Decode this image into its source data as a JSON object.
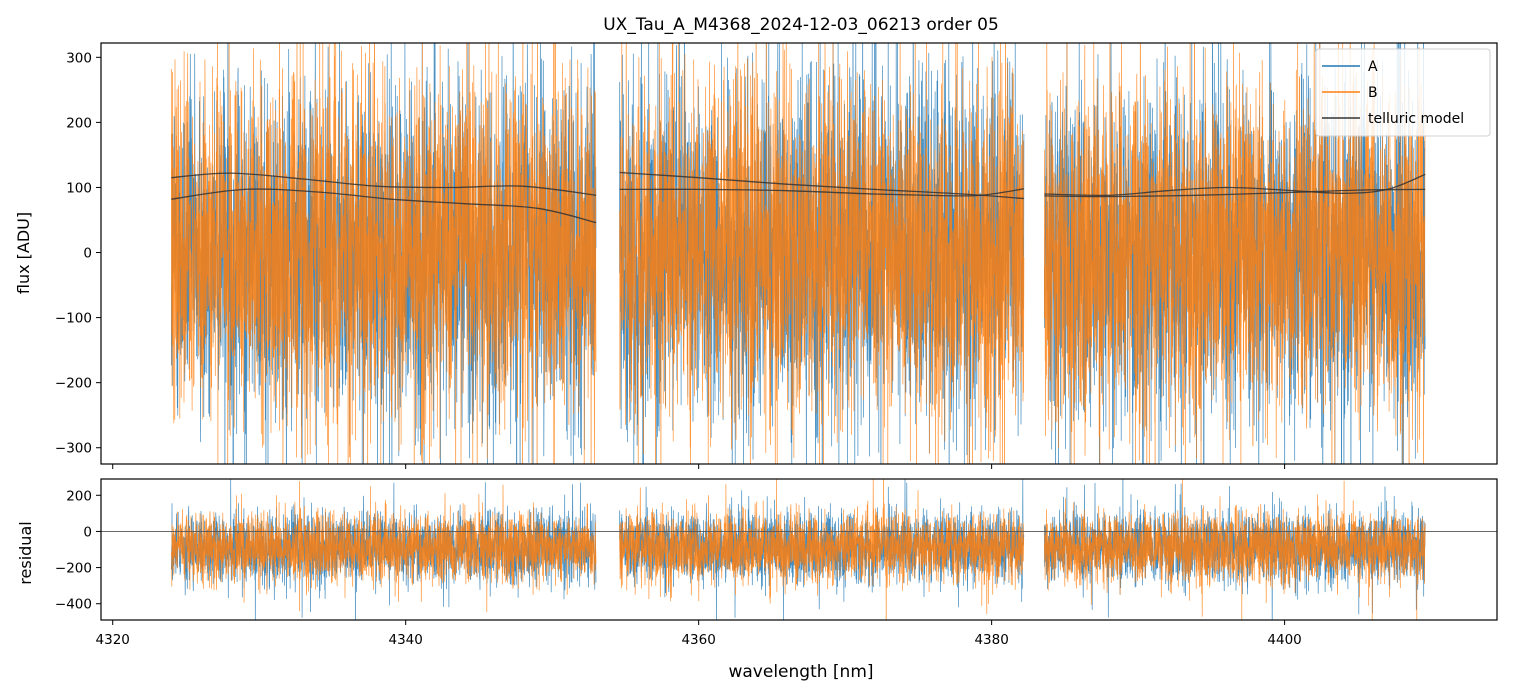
{
  "chart_data": [
    {
      "type": "line",
      "title": "UX_Tau_A_M4368_2024-12-03_06213  order 05",
      "xlabel": "",
      "ylabel": "flux [ADU]",
      "xlim": [
        4319.2,
        4414.5
      ],
      "ylim": [
        -325,
        322
      ],
      "yticks": [
        -300,
        -200,
        -100,
        0,
        100,
        200,
        300
      ],
      "xticks": [
        4320,
        4340,
        4360,
        4380,
        4400
      ],
      "show_xtick_labels": false,
      "grid": false,
      "legend": {
        "placement": "top-right",
        "entries": [
          "A",
          "B",
          "telluric model"
        ]
      },
      "segments": [
        [
          4324.0,
          4353.0
        ],
        [
          4354.6,
          4382.2
        ],
        [
          4383.6,
          4409.6
        ]
      ],
      "series": [
        {
          "name": "A",
          "color": "#1f77b4",
          "kind": "noisy spectrum",
          "mean": 0,
          "std": 130
        },
        {
          "name": "B",
          "color": "#ff7f0e",
          "kind": "noisy spectrum",
          "mean": 0,
          "std": 130
        },
        {
          "name": "telluric model",
          "color": "#333333",
          "curves": [
            {
              "x": [
                4324.0,
                4328.0,
                4333.0,
                4338.0,
                4343.0,
                4348.0,
                4353.0
              ],
              "y": [
                115,
                122,
                113,
                102,
                100,
                102,
                88
              ]
            },
            {
              "x": [
                4324.0,
                4329.0,
                4334.0,
                4339.0,
                4344.0,
                4349.0,
                4353.0
              ],
              "y": [
                82,
                97,
                93,
                82,
                75,
                68,
                46
              ]
            },
            {
              "x": [
                4354.6,
                4360.0,
                4366.0,
                4372.0,
                4378.0,
                4382.2
              ],
              "y": [
                123,
                115,
                105,
                97,
                90,
                83
              ]
            },
            {
              "x": [
                4354.6,
                4360.0,
                4366.0,
                4372.0,
                4378.0,
                4380.0,
                4382.2
              ],
              "y": [
                97,
                97,
                95,
                90,
                87,
                90,
                98
              ]
            },
            {
              "x": [
                4383.6,
                4388.0,
                4392.0,
                4396.0,
                4400.0,
                4404.0,
                4407.0,
                4409.6
              ],
              "y": [
                90,
                88,
                95,
                100,
                96,
                91,
                97,
                120
              ]
            },
            {
              "x": [
                4383.6,
                4388.0,
                4394.0,
                4400.0,
                4405.0,
                4409.6
              ],
              "y": [
                87,
                86,
                88,
                92,
                96,
                97
              ]
            }
          ]
        }
      ]
    },
    {
      "type": "line",
      "title": "",
      "xlabel": "wavelength [nm]",
      "ylabel": "residual",
      "xlim": [
        4319.2,
        4414.5
      ],
      "ylim": [
        -490,
        290
      ],
      "yticks": [
        -400,
        -200,
        0,
        200
      ],
      "xticks": [
        4320,
        4340,
        4360,
        4380,
        4400
      ],
      "xticklabels": [
        "4320",
        "4340",
        "4360",
        "4380",
        "4400"
      ],
      "grid": false,
      "reference_line_y": 0,
      "segments": [
        [
          4324.0,
          4353.0
        ],
        [
          4354.6,
          4382.2
        ],
        [
          4383.6,
          4409.6
        ]
      ],
      "series": [
        {
          "name": "A",
          "color": "#1f77b4",
          "kind": "noisy residual",
          "mean": -90,
          "std": 95
        },
        {
          "name": "B",
          "color": "#ff7f0e",
          "kind": "noisy residual",
          "mean": -90,
          "std": 95
        }
      ]
    }
  ]
}
